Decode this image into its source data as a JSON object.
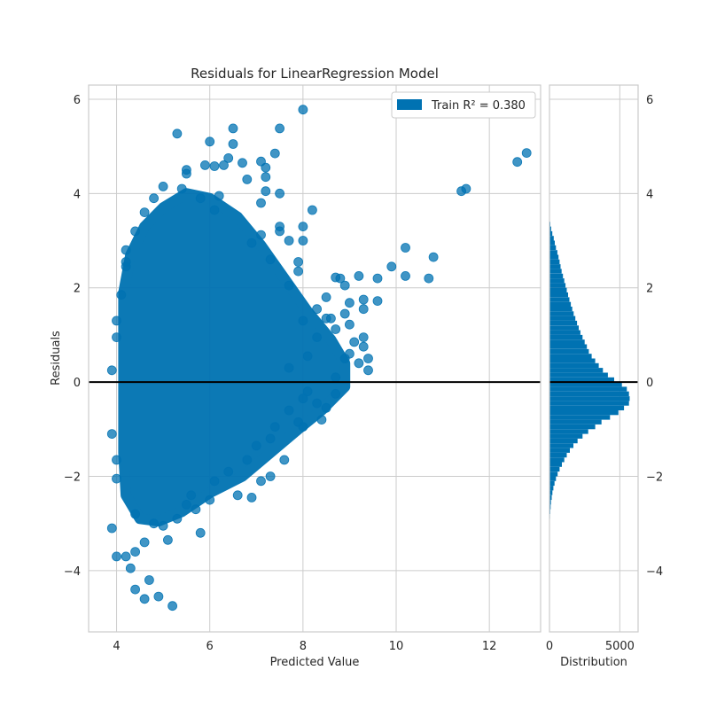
{
  "chart_data": {
    "type": "scatter",
    "title": "Residuals for LinearRegression Model",
    "xlabel": "Predicted Value",
    "ylabel": "Residuals",
    "hist_xlabel": "Distribution",
    "xlim": [
      3.4,
      13.1
    ],
    "ylim": [
      -5.3,
      6.3
    ],
    "hist_xlim": [
      0,
      6300
    ],
    "x_ticks": [
      "4",
      "6",
      "8",
      "10",
      "12"
    ],
    "x_tick_values": [
      4,
      6,
      8,
      10,
      12
    ],
    "y_ticks": [
      "6",
      "4",
      "2",
      "0",
      "−2",
      "−4"
    ],
    "y_tick_values": [
      6,
      4,
      2,
      0,
      -2,
      -4
    ],
    "hist_x_ticks": [
      "0",
      "5000"
    ],
    "hist_x_tick_values": [
      0,
      5000
    ],
    "grid": true,
    "legend_position": "top-right",
    "legend_label": "Train R² = 0.380",
    "colors": {
      "series": "#0072b2",
      "zero_line": "#000000",
      "grid": "#cccccc",
      "frame": "#cccccc"
    },
    "series": [
      {
        "name": "Train R² = 0.380",
        "points": [
          [
            8.0,
            5.78
          ],
          [
            12.8,
            4.86
          ],
          [
            12.6,
            4.67
          ],
          [
            11.5,
            4.1
          ],
          [
            11.4,
            4.05
          ],
          [
            6.5,
            5.38
          ],
          [
            7.5,
            5.38
          ],
          [
            5.3,
            5.27
          ],
          [
            6.0,
            5.1
          ],
          [
            6.5,
            5.05
          ],
          [
            7.4,
            4.85
          ],
          [
            7.1,
            4.68
          ],
          [
            5.5,
            4.5
          ],
          [
            7.2,
            4.55
          ],
          [
            7.2,
            4.35
          ],
          [
            6.8,
            4.3
          ],
          [
            7.2,
            4.05
          ],
          [
            7.5,
            4.0
          ],
          [
            7.1,
            3.8
          ],
          [
            8.2,
            3.65
          ],
          [
            7.5,
            3.3
          ],
          [
            7.1,
            3.12
          ],
          [
            7.5,
            3.2
          ],
          [
            7.7,
            3.0
          ],
          [
            8.0,
            3.3
          ],
          [
            8.0,
            3.0
          ],
          [
            10.2,
            2.85
          ],
          [
            10.8,
            2.65
          ],
          [
            9.9,
            2.45
          ],
          [
            10.2,
            2.25
          ],
          [
            10.7,
            2.2
          ],
          [
            9.6,
            2.2
          ],
          [
            9.2,
            2.25
          ],
          [
            8.7,
            2.22
          ],
          [
            8.8,
            2.2
          ],
          [
            8.9,
            2.05
          ],
          [
            8.5,
            1.8
          ],
          [
            9.3,
            1.75
          ],
          [
            9.6,
            1.72
          ],
          [
            9.0,
            1.68
          ],
          [
            9.3,
            1.55
          ],
          [
            8.9,
            1.45
          ],
          [
            8.6,
            1.35
          ],
          [
            9.0,
            1.22
          ],
          [
            8.7,
            1.12
          ],
          [
            9.3,
            0.95
          ],
          [
            9.1,
            0.85
          ],
          [
            9.3,
            0.75
          ],
          [
            9.4,
            0.5
          ],
          [
            9.2,
            0.4
          ],
          [
            9.4,
            0.25
          ],
          [
            8.9,
            0.5
          ],
          [
            9.0,
            0.6
          ],
          [
            8.7,
            0.1
          ],
          [
            8.7,
            -0.25
          ],
          [
            7.7,
            0.3
          ],
          [
            8.1,
            -0.2
          ],
          [
            8.0,
            -0.35
          ],
          [
            8.3,
            -0.45
          ],
          [
            7.7,
            -0.6
          ],
          [
            7.9,
            -0.85
          ],
          [
            7.4,
            -0.95
          ],
          [
            7.3,
            -1.2
          ],
          [
            7.0,
            -1.35
          ],
          [
            6.8,
            -1.65
          ],
          [
            6.4,
            -1.9
          ],
          [
            6.1,
            -2.1
          ],
          [
            5.6,
            -2.4
          ],
          [
            5.5,
            -2.6
          ],
          [
            5.3,
            -2.9
          ],
          [
            5.8,
            -3.2
          ],
          [
            5.0,
            -3.05
          ],
          [
            4.6,
            -3.4
          ],
          [
            4.4,
            -3.6
          ],
          [
            4.2,
            -3.7
          ],
          [
            4.3,
            -3.95
          ],
          [
            4.7,
            -4.2
          ],
          [
            4.9,
            -4.55
          ],
          [
            5.2,
            -4.75
          ],
          [
            4.4,
            -4.4
          ],
          [
            4.6,
            -4.6
          ],
          [
            3.9,
            -3.1
          ],
          [
            4.0,
            -3.7
          ],
          [
            3.9,
            -1.1
          ],
          [
            4.0,
            -1.65
          ],
          [
            4.0,
            -2.05
          ],
          [
            3.9,
            0.25
          ],
          [
            4.0,
            0.95
          ],
          [
            4.0,
            1.3
          ],
          [
            4.1,
            1.85
          ],
          [
            4.2,
            2.45
          ],
          [
            4.2,
            2.55
          ],
          [
            4.2,
            2.8
          ],
          [
            4.4,
            3.2
          ],
          [
            4.6,
            3.6
          ],
          [
            4.8,
            3.9
          ],
          [
            5.0,
            4.15
          ],
          [
            5.4,
            4.1
          ],
          [
            5.5,
            4.42
          ],
          [
            5.9,
            4.6
          ],
          [
            6.1,
            4.58
          ],
          [
            6.4,
            4.75
          ],
          [
            6.3,
            4.6
          ],
          [
            6.7,
            4.65
          ],
          [
            5.8,
            3.9
          ],
          [
            6.1,
            3.65
          ],
          [
            6.2,
            3.95
          ],
          [
            4.4,
            -2.8
          ],
          [
            4.8,
            -3.0
          ],
          [
            5.1,
            -3.35
          ],
          [
            5.7,
            -2.7
          ],
          [
            6.0,
            -2.5
          ],
          [
            6.6,
            -2.4
          ],
          [
            7.1,
            -2.1
          ],
          [
            6.9,
            -2.45
          ],
          [
            7.3,
            -2.0
          ],
          [
            7.6,
            -1.65
          ],
          [
            8.0,
            -0.95
          ],
          [
            8.4,
            -0.8
          ],
          [
            8.5,
            -0.55
          ],
          [
            8.1,
            0.55
          ],
          [
            8.3,
            0.95
          ],
          [
            8.5,
            1.35
          ],
          [
            8.0,
            1.3
          ],
          [
            8.3,
            1.55
          ],
          [
            7.7,
            2.05
          ],
          [
            7.9,
            2.35
          ],
          [
            7.3,
            2.6
          ],
          [
            6.9,
            2.95
          ],
          [
            7.9,
            2.55
          ]
        ]
      }
    ],
    "histogram": {
      "bin_width": 0.1,
      "bins": [
        [
          3.3,
          60
        ],
        [
          3.2,
          120
        ],
        [
          3.1,
          200
        ],
        [
          3.0,
          300
        ],
        [
          2.9,
          380
        ],
        [
          2.8,
          460
        ],
        [
          2.7,
          560
        ],
        [
          2.6,
          640
        ],
        [
          2.5,
          720
        ],
        [
          2.4,
          790
        ],
        [
          2.3,
          860
        ],
        [
          2.2,
          960
        ],
        [
          2.1,
          1050
        ],
        [
          2.0,
          1140
        ],
        [
          1.9,
          1230
        ],
        [
          1.8,
          1320
        ],
        [
          1.7,
          1420
        ],
        [
          1.6,
          1520
        ],
        [
          1.5,
          1620
        ],
        [
          1.4,
          1720
        ],
        [
          1.3,
          1840
        ],
        [
          1.2,
          1960
        ],
        [
          1.1,
          2080
        ],
        [
          1.0,
          2200
        ],
        [
          0.9,
          2350
        ],
        [
          0.8,
          2500
        ],
        [
          0.7,
          2660
        ],
        [
          0.6,
          2800
        ],
        [
          0.5,
          3000
        ],
        [
          0.4,
          3250
        ],
        [
          0.3,
          3500
        ],
        [
          0.2,
          3800
        ],
        [
          0.1,
          4150
        ],
        [
          0.0,
          4600
        ],
        [
          -0.1,
          5150
        ],
        [
          -0.2,
          5500
        ],
        [
          -0.3,
          5650
        ],
        [
          -0.4,
          5700
        ],
        [
          -0.5,
          5650
        ],
        [
          -0.6,
          5300
        ],
        [
          -0.7,
          4900
        ],
        [
          -0.8,
          4300
        ],
        [
          -0.9,
          3700
        ],
        [
          -1.0,
          3250
        ],
        [
          -1.1,
          2750
        ],
        [
          -1.2,
          2350
        ],
        [
          -1.3,
          2000
        ],
        [
          -1.4,
          1700
        ],
        [
          -1.5,
          1450
        ],
        [
          -1.6,
          1230
        ],
        [
          -1.7,
          1050
        ],
        [
          -1.8,
          880
        ],
        [
          -1.9,
          720
        ],
        [
          -2.0,
          580
        ],
        [
          -2.1,
          460
        ],
        [
          -2.2,
          360
        ],
        [
          -2.3,
          280
        ],
        [
          -2.4,
          210
        ],
        [
          -2.5,
          160
        ],
        [
          -2.6,
          110
        ],
        [
          -2.7,
          80
        ],
        [
          -2.8,
          55
        ],
        [
          -2.9,
          35
        ],
        [
          -3.0,
          22
        ]
      ]
    }
  }
}
